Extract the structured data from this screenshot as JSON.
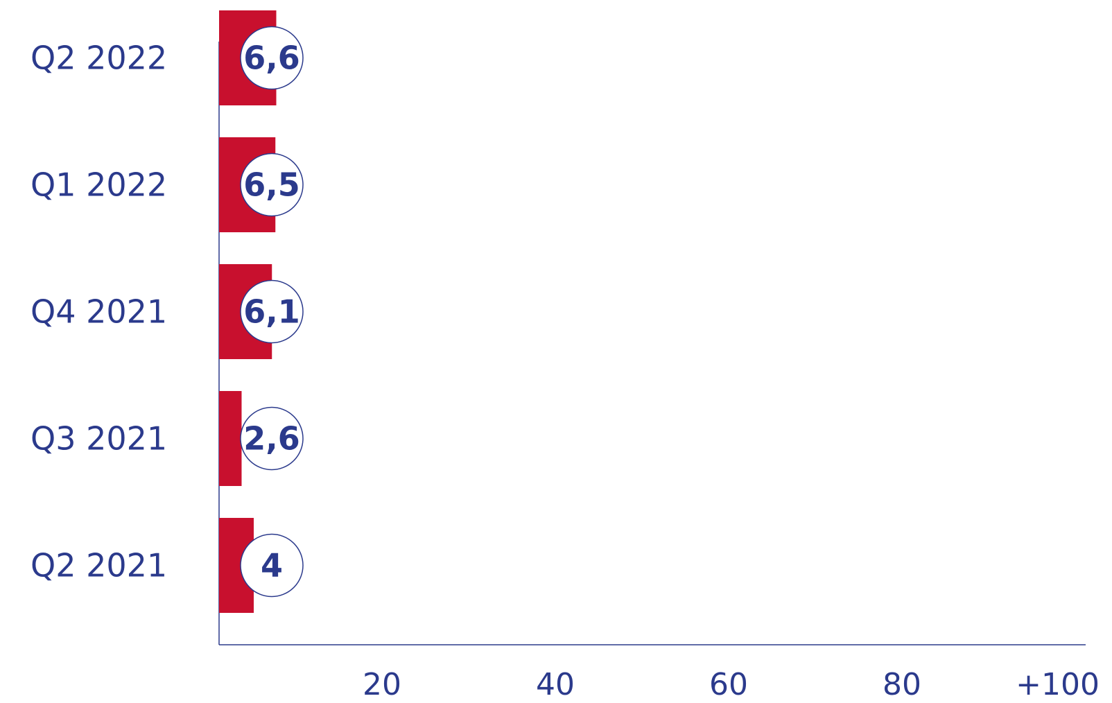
{
  "chart_data": {
    "type": "bar",
    "orientation": "horizontal",
    "categories": [
      "Q2 2022",
      "Q1 2022",
      "Q4 2021",
      "Q3 2021",
      "Q2 2021"
    ],
    "values": [
      6.6,
      6.5,
      6.1,
      2.6,
      4
    ],
    "value_labels": [
      "6,6",
      "6,5",
      "6,1",
      "2,6",
      "4"
    ],
    "x_ticks": [
      {
        "value": 20,
        "label": "20"
      },
      {
        "value": 40,
        "label": "40"
      },
      {
        "value": 60,
        "label": "60"
      },
      {
        "value": 80,
        "label": "80"
      },
      {
        "value": 100,
        "label": "+100"
      }
    ],
    "xlim": [
      0,
      100
    ],
    "title": "",
    "xlabel": "",
    "ylabel": "",
    "grid": false,
    "colors": {
      "bar": "#c8102e",
      "axis": "#2b3a8c",
      "text": "#2b3a8c",
      "bubble_fill": "#ffffff",
      "bubble_stroke": "#2b3a8c"
    }
  }
}
